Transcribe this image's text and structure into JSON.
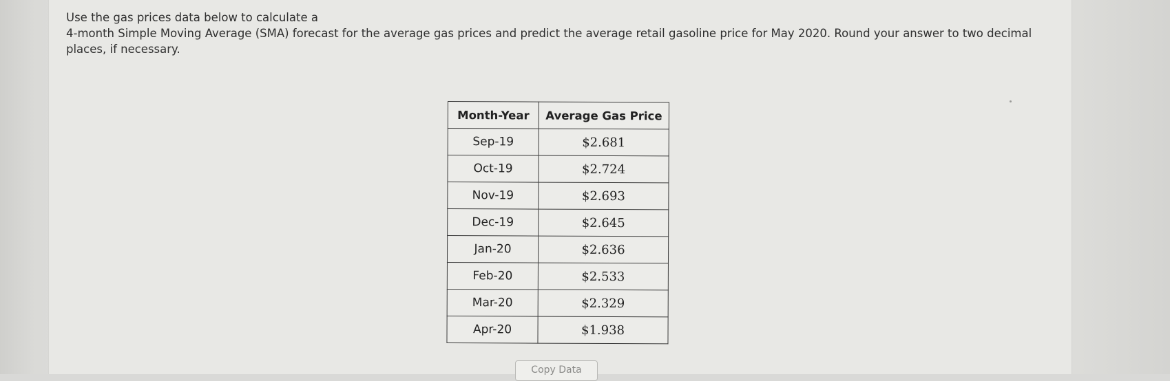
{
  "question": {
    "line1": "Use the gas prices data below to calculate a",
    "line2": "4-month Simple Moving Average (SMA) forecast for the average gas prices and predict the average retail gasoline price for May 2020. Round your answer to two decimal places, if necessary."
  },
  "table": {
    "headers": [
      "Month-Year",
      "Average Gas Price"
    ],
    "rows": [
      [
        "Sep-19",
        "$2.681"
      ],
      [
        "Oct-19",
        "$2.724"
      ],
      [
        "Nov-19",
        "$2.693"
      ],
      [
        "Dec-19",
        "$2.645"
      ],
      [
        "Jan-20",
        "$2.636"
      ],
      [
        "Feb-20",
        "$2.533"
      ],
      [
        "Mar-20",
        "$2.329"
      ],
      [
        "Apr-20",
        "$1.938"
      ]
    ]
  },
  "copy_button": {
    "label": "Copy Data"
  }
}
